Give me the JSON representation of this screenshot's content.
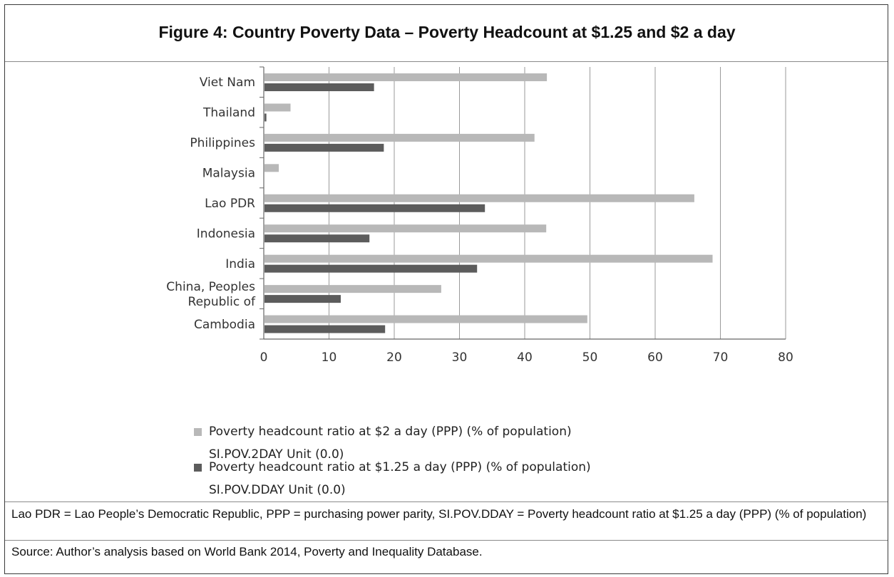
{
  "figure": {
    "title": "Figure 4: Country Poverty Data – Poverty Headcount at $1.25 and $2 a day",
    "notes": "Lao PDR = Lao People’s Democratic Republic, PPP = purchasing power parity, SI.POV.DDAY = Poverty headcount ratio at $1.25 a day (PPP) (% of population)",
    "source": "Source: Author’s analysis based on World Bank 2014, Poverty and Inequality Database."
  },
  "chart_data": {
    "type": "bar",
    "orientation": "horizontal",
    "categories": [
      "Viet Nam",
      "Thailand",
      "Philippines",
      "Malaysia",
      "Lao PDR",
      "Indonesia",
      "India",
      "China, Peoples Republic of",
      "Cambodia"
    ],
    "category_lines": [
      [
        "Viet Nam"
      ],
      [
        "Thailand"
      ],
      [
        "Philippines"
      ],
      [
        "Malaysia"
      ],
      [
        "Lao PDR"
      ],
      [
        "Indonesia"
      ],
      [
        "India"
      ],
      [
        "China, Peoples",
        "Republic of"
      ],
      [
        "Cambodia"
      ]
    ],
    "series": [
      {
        "name": "Poverty headcount ratio at $2 a day (PPP) (% of population)",
        "name_line2": "SI.POV.2DAY Unit (0.0)",
        "color": "#b8b8b8",
        "values": [
          43.4,
          4.1,
          41.5,
          2.3,
          66.0,
          43.3,
          68.8,
          27.2,
          49.6
        ]
      },
      {
        "name": "Poverty headcount ratio at $1.25 a day (PPP) (% of population)",
        "name_line2": "SI.POV.DDAY Unit (0.0)",
        "color": "#5c5c5c",
        "values": [
          16.9,
          0.4,
          18.4,
          0.0,
          33.9,
          16.2,
          32.7,
          11.8,
          18.6
        ]
      }
    ],
    "xlim": [
      0,
      80
    ],
    "xticks": [
      "0",
      "10",
      "20",
      "30",
      "40",
      "50",
      "60",
      "70",
      "80"
    ],
    "grid": true,
    "legend_position": "bottom"
  }
}
